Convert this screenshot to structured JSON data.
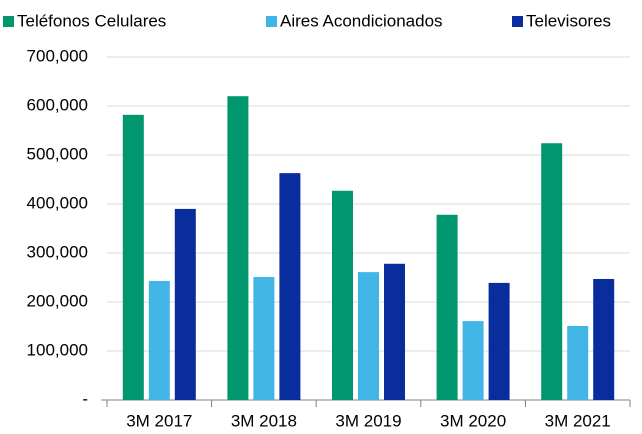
{
  "chart_data": {
    "type": "bar",
    "categories": [
      "3M 2017",
      "3M 2018",
      "3M 2019",
      "3M 2020",
      "3M 2021"
    ],
    "series": [
      {
        "name": "Teléfonos Celulares",
        "color": "#00966e",
        "values": [
          582000,
          620000,
          427000,
          378000,
          524000
        ]
      },
      {
        "name": "Aires Acondicionados",
        "color": "#41b6e6",
        "values": [
          243000,
          251000,
          261000,
          161000,
          151000
        ]
      },
      {
        "name": "Televisores",
        "color": "#0a2d9e",
        "values": [
          390000,
          463000,
          278000,
          239000,
          247000
        ]
      }
    ],
    "ylim": [
      0,
      700000
    ],
    "yticks": [
      {
        "value": 0,
        "label": "-"
      },
      {
        "value": 100000,
        "label": "100,000"
      },
      {
        "value": 200000,
        "label": "200,000"
      },
      {
        "value": 300000,
        "label": "300,000"
      },
      {
        "value": 400000,
        "label": "400,000"
      },
      {
        "value": 500000,
        "label": "500,000"
      },
      {
        "value": 600000,
        "label": "600,000"
      },
      {
        "value": 700000,
        "label": "700,000"
      }
    ],
    "grid": true,
    "legend": "top"
  }
}
